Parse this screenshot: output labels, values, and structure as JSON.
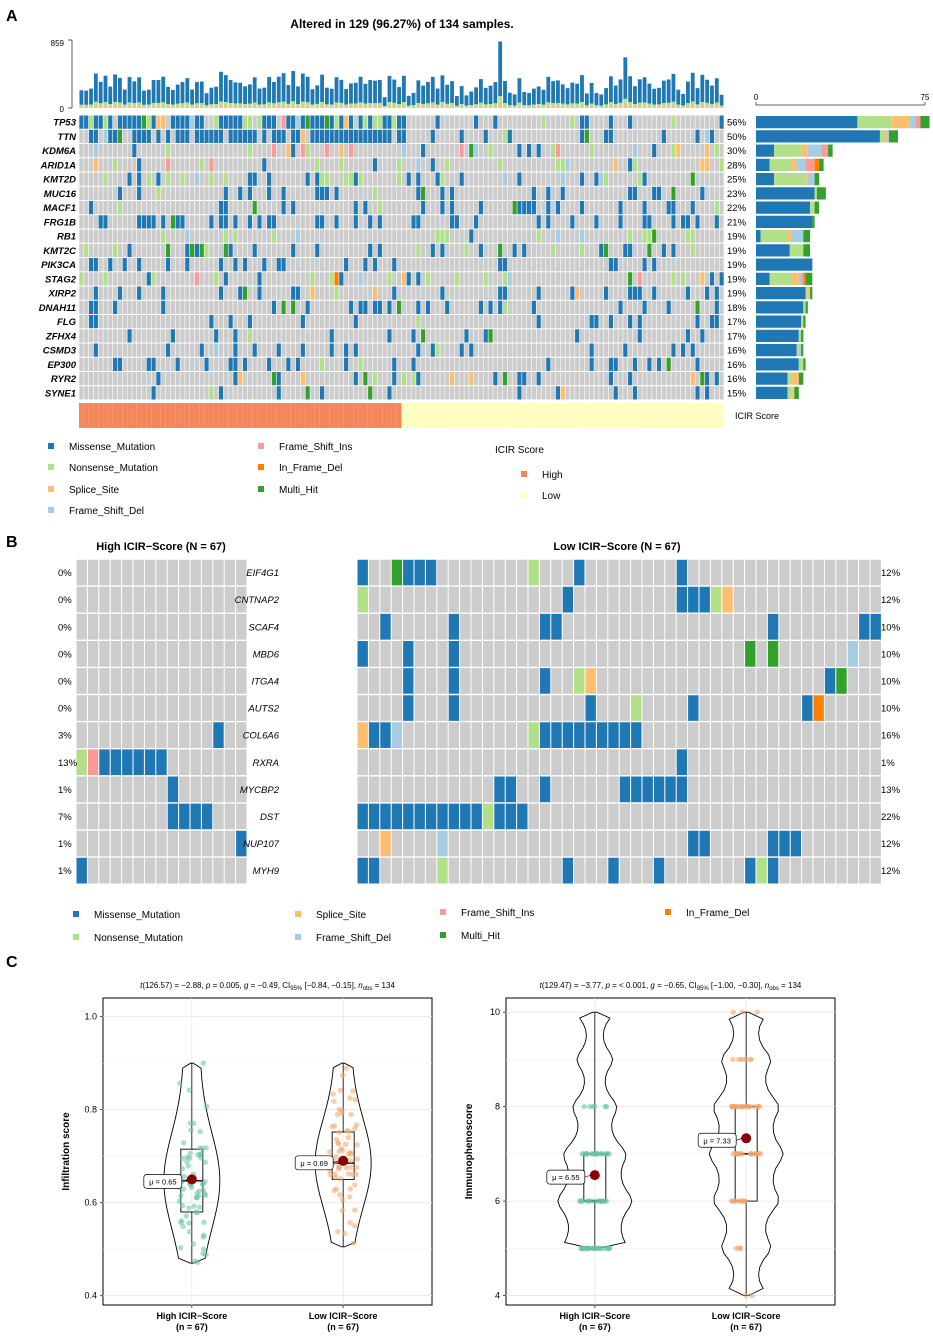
{
  "panel_labels": {
    "a": "A",
    "b": "B",
    "c": "C"
  },
  "colors": {
    "Missense_Mutation": "#1f78b4",
    "Nonsense_Mutation": "#b2df8a",
    "Splice_Site": "#fdbf6f",
    "Frame_Shift_Del": "#a6cee3",
    "Frame_Shift_Ins": "#fb9a99",
    "In_Frame_Del": "#ff7f00",
    "Multi_Hit": "#33a02c",
    "empty": "#cccccc",
    "icir_high": "#f4875a",
    "icir_low": "#ffffc1",
    "high_point": "#66c2a5",
    "low_point": "#f3a469",
    "mean": "#8b0000"
  },
  "chart_data": [
    {
      "id": "oncoplot",
      "type": "heatmap",
      "title": "Altered in 129 (96.27%) of 134 samples.",
      "n_samples": 134,
      "n_high": 67,
      "tmb_axis": {
        "max_label": "859",
        "min_label": "0",
        "max": 859
      },
      "gene_bar_axis": {
        "min_label": "0",
        "max_label": "75",
        "max": 75
      },
      "genes": [
        {
          "name": "TP53",
          "pct": "56%",
          "counts": [
            45,
            15,
            8,
            3,
            2,
            0,
            4
          ]
        },
        {
          "name": "TTN",
          "pct": "50%",
          "counts": [
            55,
            2,
            1,
            1,
            0,
            0,
            4
          ]
        },
        {
          "name": "KDM6A",
          "pct": "30%",
          "counts": [
            8,
            12,
            3,
            6,
            3,
            0,
            2
          ]
        },
        {
          "name": "ARID1A",
          "pct": "28%",
          "counts": [
            6,
            10,
            2,
            4,
            4,
            2,
            2
          ]
        },
        {
          "name": "KMT2D",
          "pct": "25%",
          "counts": [
            8,
            14,
            1,
            3,
            0,
            0,
            2
          ]
        },
        {
          "name": "MUC16",
          "pct": "23%",
          "counts": [
            26,
            1,
            0,
            0,
            0,
            0,
            4
          ]
        },
        {
          "name": "MACF1",
          "pct": "22%",
          "counts": [
            24,
            2,
            0,
            0,
            0,
            0,
            2
          ]
        },
        {
          "name": "FRG1B",
          "pct": "21%",
          "counts": [
            25,
            0,
            0,
            0,
            0,
            0,
            1
          ]
        },
        {
          "name": "RB1",
          "pct": "19%",
          "counts": [
            2,
            12,
            2,
            5,
            0,
            0,
            3
          ]
        },
        {
          "name": "KMT2C",
          "pct": "19%",
          "counts": [
            15,
            6,
            0,
            0,
            0,
            0,
            3
          ]
        },
        {
          "name": "PIK3CA",
          "pct": "19%",
          "counts": [
            25,
            0,
            0,
            0,
            0,
            0,
            0
          ]
        },
        {
          "name": "STAG2",
          "pct": "19%",
          "counts": [
            6,
            10,
            3,
            1,
            1,
            1,
            3
          ]
        },
        {
          "name": "XIRP2",
          "pct": "19%",
          "counts": [
            22,
            1,
            1,
            0,
            0,
            0,
            1
          ]
        },
        {
          "name": "DNAH11",
          "pct": "18%",
          "counts": [
            21,
            1,
            0,
            0,
            0,
            0,
            1
          ]
        },
        {
          "name": "FLG",
          "pct": "17%",
          "counts": [
            20,
            1,
            0,
            0,
            0,
            0,
            1
          ]
        },
        {
          "name": "ZFHX4",
          "pct": "17%",
          "counts": [
            19,
            1,
            0,
            0,
            0,
            0,
            1
          ]
        },
        {
          "name": "CSMD3",
          "pct": "16%",
          "counts": [
            18,
            1,
            0,
            1,
            0,
            0,
            1
          ]
        },
        {
          "name": "EP300",
          "pct": "16%",
          "counts": [
            19,
            2,
            0,
            0,
            0,
            0,
            1
          ]
        },
        {
          "name": "RYR2",
          "pct": "16%",
          "counts": [
            14,
            2,
            3,
            0,
            0,
            0,
            2
          ]
        },
        {
          "name": "SYNE1",
          "pct": "15%",
          "counts": [
            14,
            2,
            1,
            0,
            0,
            0,
            2
          ]
        }
      ],
      "annotation_label": "ICIR  Score",
      "legend_variants": [
        "Missense_Mutation",
        "Nonsense_Mutation",
        "Splice_Site",
        "Frame_Shift_Del",
        "Frame_Shift_Ins",
        "In_Frame_Del",
        "Multi_Hit"
      ],
      "legend_score": {
        "title": "ICIR  Score",
        "items": [
          "High",
          "Low"
        ]
      }
    },
    {
      "id": "comparison",
      "type": "heatmap",
      "groups": [
        {
          "title": "High ICIR−Score (N = 67)",
          "columns": 15
        },
        {
          "title": "Low ICIR−Score (N = 67)",
          "columns": 46
        }
      ],
      "genes": [
        {
          "name": "EIF4G1",
          "high_pct": "0%",
          "low_pct": "12%",
          "high": {},
          "low": {
            "0": 0,
            "3": 6,
            "4": 0,
            "5": 0,
            "6": 0,
            "15": 1,
            "19": 0,
            "28": 0
          }
        },
        {
          "name": "CNTNAP2",
          "high_pct": "0%",
          "low_pct": "12%",
          "high": {},
          "low": {
            "0": 1,
            "18": 0,
            "28": 0,
            "29": 0,
            "30": 0,
            "31": 1,
            "32": 2
          }
        },
        {
          "name": "SCAF4",
          "high_pct": "0%",
          "low_pct": "10%",
          "high": {},
          "low": {
            "2": 0,
            "8": 0,
            "16": 0,
            "17": 0,
            "36": 0,
            "44": 0,
            "45": 0
          }
        },
        {
          "name": "MBD6",
          "high_pct": "0%",
          "low_pct": "10%",
          "high": {},
          "low": {
            "0": 0,
            "4": 0,
            "8": 0,
            "34": 6,
            "36": 6,
            "43": 3
          }
        },
        {
          "name": "ITGA4",
          "high_pct": "0%",
          "low_pct": "10%",
          "high": {},
          "low": {
            "4": 0,
            "8": 0,
            "16": 0,
            "19": 1,
            "20": 2,
            "41": 0,
            "42": 6
          }
        },
        {
          "name": "AUTS2",
          "high_pct": "0%",
          "low_pct": "10%",
          "high": {},
          "low": {
            "4": 0,
            "8": 0,
            "20": 0,
            "24": 1,
            "29": 0,
            "39": 0,
            "40": 5
          }
        },
        {
          "name": "COL6A6",
          "high_pct": "3%",
          "low_pct": "16%",
          "high": {
            "12": 0
          },
          "low": {
            "0": 2,
            "1": 0,
            "2": 0,
            "3": 3,
            "15": 1,
            "16": 0,
            "17": 0,
            "18": 0,
            "19": 0,
            "20": 0,
            "21": 0,
            "22": 0,
            "23": 0,
            "24": 0
          }
        },
        {
          "name": "RXRA",
          "high_pct": "13%",
          "low_pct": "1%",
          "high": {
            "0": 1,
            "1": 4,
            "2": 0,
            "3": 0,
            "4": 0,
            "5": 0,
            "6": 0,
            "7": 0
          },
          "low": {
            "28": 0
          }
        },
        {
          "name": "MYCBP2",
          "high_pct": "1%",
          "low_pct": "13%",
          "high": {
            "8": 0
          },
          "low": {
            "12": 0,
            "13": 0,
            "16": 0,
            "23": 0,
            "24": 0,
            "25": 0,
            "26": 0,
            "27": 0,
            "28": 0
          }
        },
        {
          "name": "DST",
          "high_pct": "7%",
          "low_pct": "22%",
          "high": {
            "8": 0,
            "9": 0,
            "10": 0,
            "11": 0
          },
          "low": {
            "0": 0,
            "1": 0,
            "2": 0,
            "3": 0,
            "4": 0,
            "5": 0,
            "6": 0,
            "7": 0,
            "8": 0,
            "9": 0,
            "10": 0,
            "11": 1,
            "12": 0,
            "13": 0,
            "14": 0
          }
        },
        {
          "name": "NUP107",
          "high_pct": "1%",
          "low_pct": "12%",
          "high": {
            "14": 0
          },
          "low": {
            "2": 2,
            "7": 3,
            "29": 0,
            "30": 0,
            "36": 0,
            "37": 0,
            "38": 0
          }
        },
        {
          "name": "MYH9",
          "high_pct": "1%",
          "low_pct": "12%",
          "high": {
            "0": 0
          },
          "low": {
            "0": 0,
            "1": 0,
            "7": 1,
            "18": 0,
            "22": 0,
            "26": 0,
            "34": 0,
            "35": 1,
            "36": 0
          }
        }
      ],
      "legend_variants": [
        "Missense_Mutation",
        "Nonsense_Mutation",
        "Splice_Site",
        "Frame_Shift_Del",
        "Frame_Shift_Ins",
        "Multi_Hit",
        "In_Frame_Del"
      ]
    },
    {
      "id": "violin_infiltration",
      "type": "scatter",
      "subtitle_html": "<tspan font-style=\"italic\">t</tspan>(126.57) = −2.88, <tspan font-style=\"italic\">p</tspan> = 0.005, <tspan font-style=\"italic\">g</tspan> = −0.49, CI<tspan font-size=\"6\" dy=\"2\">95%</tspan><tspan dy=\"-2\"> [−0.84, −0.15], </tspan><tspan font-style=\"italic\">n</tspan><tspan font-size=\"6\" dy=\"2\">obs</tspan><tspan dy=\"-2\"> = 134</tspan>",
      "ylabel": "Infiltration score",
      "ylim": [
        0.38,
        1.04
      ],
      "yticks": [
        0.4,
        0.6,
        0.8,
        1.0
      ],
      "ytick_labels": [
        "0.4",
        "0.6",
        "0.8",
        "1.0"
      ],
      "categories": [
        "High ICIR−Score",
        "Low ICIR−Score"
      ],
      "n_labels": [
        "(n = 67)",
        "(n = 67)"
      ],
      "groups": [
        {
          "mean": 0.65,
          "mean_label": "μ = 0.65",
          "q1": 0.58,
          "median": 0.647,
          "q3": 0.715,
          "whisker_low": 0.47,
          "whisker_high": 0.9,
          "n": 67
        },
        {
          "mean": 0.69,
          "mean_label": "μ = 0.69",
          "q1": 0.65,
          "median": 0.685,
          "q3": 0.752,
          "whisker_low": 0.505,
          "whisker_high": 0.9,
          "n": 67
        }
      ]
    },
    {
      "id": "violin_immunophenoscore",
      "type": "scatter",
      "subtitle_html": "<tspan font-style=\"italic\">t</tspan>(129.47) = −3.77, <tspan font-style=\"italic\">p</tspan> = &lt; 0.001, <tspan font-style=\"italic\">g</tspan> = −0.65, CI<tspan font-size=\"6\" dy=\"2\">95%</tspan><tspan dy=\"-2\"> [−1.00, −0.30], </tspan><tspan font-style=\"italic\">n</tspan><tspan font-size=\"6\" dy=\"2\">obs</tspan><tspan dy=\"-2\"> = 134</tspan>",
      "ylabel": "Immunophenoscore",
      "ylim": [
        3.8,
        10.3
      ],
      "yticks": [
        4,
        6,
        8,
        10
      ],
      "ytick_labels": [
        "4",
        "6",
        "8",
        "10"
      ],
      "categories": [
        "High ICIR−Score",
        "Low ICIR−Score"
      ],
      "n_labels": [
        "(n = 67)",
        "(n = 67)"
      ],
      "groups": [
        {
          "mean": 6.55,
          "mean_label": "μ = 6.55",
          "q1": 6.0,
          "median": 6.0,
          "q3": 7.0,
          "whisker_low": 5.0,
          "whisker_high": 10.0,
          "n": 67
        },
        {
          "mean": 7.33,
          "mean_label": "μ = 7.33",
          "q1": 6.0,
          "median": 7.0,
          "q3": 8.0,
          "whisker_low": 4.0,
          "whisker_high": 10.0,
          "n": 67
        }
      ]
    }
  ]
}
